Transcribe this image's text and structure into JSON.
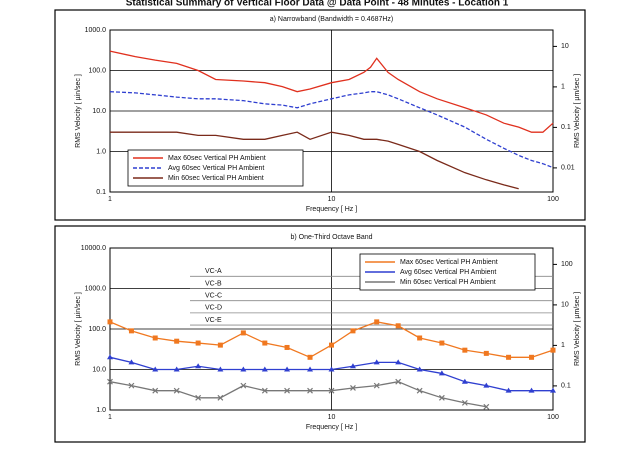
{
  "title": "Statistical Summary of Vertical Floor Data @ Data Point - 48 Minutes - Location 1",
  "chart_data": [
    {
      "type": "line",
      "title": "a) Narrowband (Bandwidth = 0.4687Hz)",
      "xlabel": "Frequency [ Hz ]",
      "ylabel": "RMS Velocity [ µin/sec ]",
      "y2label": "RMS Velocity [ µm/sec ]",
      "xscale": "log",
      "yscale": "log",
      "grid": true,
      "legend": "lower left",
      "xlim": [
        1,
        100
      ],
      "xticks": [
        1,
        10,
        100
      ],
      "ylim": [
        0.1,
        1000
      ],
      "yticks": [
        0.1,
        {
          "value": 1,
          "label": "1.0"
        },
        {
          "value": 10,
          "label": "10.0"
        },
        {
          "value": 100,
          "label": "100.0"
        },
        {
          "value": 1000,
          "label": "1000.0"
        }
      ],
      "y2lim": [
        0.00254,
        25.4
      ],
      "y2ticks": [
        0.01,
        0.1,
        1,
        10
      ],
      "x": [
        1,
        1.3,
        1.6,
        2,
        2.5,
        3,
        4,
        5,
        6,
        7,
        8,
        10,
        12,
        14,
        15,
        16,
        18,
        20,
        25,
        30,
        40,
        50,
        60,
        70,
        80,
        90,
        100
      ],
      "series": [
        {
          "name": "Max 60sec Vertical PH Ambient",
          "color": "#e0301e",
          "dash": "solid",
          "values": [
            300,
            220,
            180,
            150,
            100,
            60,
            55,
            50,
            40,
            30,
            35,
            50,
            60,
            90,
            120,
            200,
            90,
            60,
            30,
            20,
            12,
            8,
            5,
            4,
            3,
            3,
            5
          ]
        },
        {
          "name": "Avg 60sec Vertical PH Ambient",
          "color": "#2f3fd0",
          "dash": "dashed",
          "values": [
            30,
            28,
            25,
            22,
            20,
            20,
            18,
            15,
            14,
            12,
            15,
            20,
            25,
            28,
            30,
            30,
            25,
            20,
            12,
            8,
            4,
            2,
            1.2,
            0.8,
            0.6,
            0.5,
            0.4
          ]
        },
        {
          "name": "Min 60sec Vertical PH Ambient",
          "color": "#7a2a1a",
          "dash": "solid",
          "values": [
            3,
            3,
            3,
            3,
            2.5,
            2.5,
            2,
            2,
            2.5,
            3,
            2,
            3,
            2.5,
            2,
            2,
            2,
            1.8,
            1.5,
            1,
            0.6,
            0.3,
            0.2,
            0.15,
            0.12,
            null,
            null,
            null
          ]
        }
      ]
    },
    {
      "type": "line",
      "title": "b) One-Third Octave Band",
      "xlabel": "Frequency [ Hz ]",
      "ylabel": "RMS Velocity [ µin/sec ]",
      "y2label": "RMS Velocity [ µm/sec ]",
      "xscale": "log",
      "yscale": "log",
      "grid": true,
      "legend": "upper right",
      "xlim": [
        1,
        100
      ],
      "xticks": [
        1,
        10,
        100
      ],
      "ylim": [
        1,
        10000
      ],
      "yticks": [
        {
          "value": 1,
          "label": "1.0"
        },
        {
          "value": 10,
          "label": "10.0"
        },
        {
          "value": 100,
          "label": "100.0"
        },
        {
          "value": 1000,
          "label": "1000.0"
        },
        {
          "value": 10000,
          "label": "10000.0"
        }
      ],
      "y2lim": [
        0.0254,
        254
      ],
      "y2ticks": [
        0.1,
        1,
        10,
        100
      ],
      "criteria": [
        {
          "name": "VC-A",
          "value": 2000
        },
        {
          "name": "VC-B",
          "value": 1000
        },
        {
          "name": "VC-C",
          "value": 500
        },
        {
          "name": "VC-D",
          "value": 250
        },
        {
          "name": "VC-E",
          "value": 125
        }
      ],
      "x": [
        1,
        1.25,
        1.6,
        2,
        2.5,
        3.15,
        4,
        5,
        6.3,
        8,
        10,
        12.5,
        16,
        20,
        25,
        31.5,
        40,
        50,
        63,
        80,
        100
      ],
      "series": [
        {
          "name": "Max 60sec Vertical PH Ambient",
          "color": "#f07820",
          "marker": "square",
          "values": [
            150,
            90,
            60,
            50,
            45,
            40,
            80,
            45,
            35,
            20,
            40,
            90,
            150,
            120,
            60,
            45,
            30,
            25,
            20,
            20,
            30
          ]
        },
        {
          "name": "Avg 60sec Vertical PH Ambient",
          "color": "#2f3fd0",
          "marker": "triangle",
          "values": [
            20,
            15,
            10,
            10,
            12,
            10,
            10,
            10,
            10,
            10,
            10,
            12,
            15,
            15,
            10,
            8,
            5,
            4,
            3,
            3,
            3
          ]
        },
        {
          "name": "Min 60sec Vertical PH Ambient",
          "color": "#777777",
          "marker": "x",
          "values": [
            5,
            4,
            3,
            3,
            2,
            2,
            4,
            3,
            3,
            3,
            3,
            3.5,
            4,
            5,
            3,
            2,
            1.5,
            1.2,
            null,
            null,
            null
          ]
        }
      ]
    }
  ]
}
